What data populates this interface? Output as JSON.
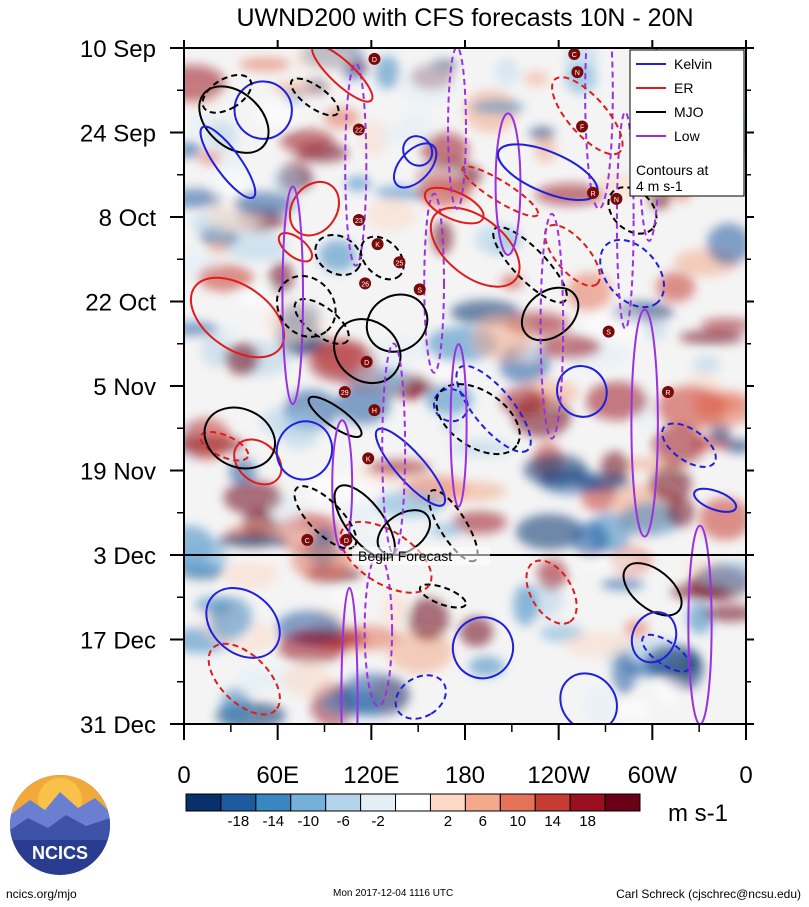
{
  "chart_data": {
    "type": "heatmap",
    "title": "UWND200 with CFS forecasts  10N - 20N",
    "xlabel": "",
    "ylabel": "",
    "x_ticks": [
      "0",
      "60E",
      "120E",
      "180",
      "120W",
      "60W",
      "0"
    ],
    "x_tick_values": [
      0,
      60,
      120,
      180,
      240,
      300,
      360
    ],
    "y_ticks": [
      "10 Sep",
      "24 Sep",
      "8 Oct",
      "22 Oct",
      "5 Nov",
      "19 Nov",
      "3 Dec",
      "17 Dec",
      "31 Dec"
    ],
    "y_tick_values": [
      0,
      14,
      28,
      42,
      56,
      70,
      84,
      98,
      112
    ],
    "xlim": [
      0,
      360
    ],
    "ylim": [
      0,
      112
    ],
    "units": "m s-1",
    "colorbar": {
      "labels": [
        "-18",
        "-14",
        "-10",
        "-6",
        "-2",
        "2",
        "6",
        "10",
        "14",
        "18"
      ],
      "colors": [
        "#08306b",
        "#1d5aa0",
        "#3a86c1",
        "#74b0d8",
        "#b3d4ea",
        "#e2eff7",
        "#ffffff",
        "#fbd9c6",
        "#f3a98a",
        "#e4735a",
        "#c63b32",
        "#9b1020",
        "#6a0015"
      ]
    },
    "legend": {
      "placement": "top-right",
      "entries": [
        {
          "name": "Kelvin",
          "color": "#1f1fdc"
        },
        {
          "name": "ER",
          "color": "#e01b1b"
        },
        {
          "name": "MJO",
          "color": "#000000"
        },
        {
          "name": "Low",
          "color": "#9b30e0"
        }
      ],
      "note_line1": "Contours at",
      "note_line2": "4 m s-1"
    },
    "forecast_line": {
      "label": "Begin Forecast",
      "y": 84
    },
    "storm_markers": [
      {
        "label": "D",
        "x": 122,
        "y": 1.8
      },
      {
        "label": "C",
        "x": 250,
        "y": 1.0
      },
      {
        "label": "N",
        "x": 252,
        "y": 4.0
      },
      {
        "label": "22",
        "x": 112,
        "y": 13.5
      },
      {
        "label": "F",
        "x": 255,
        "y": 13.0
      },
      {
        "label": "R",
        "x": 262,
        "y": 24.0
      },
      {
        "label": "N",
        "x": 277,
        "y": 25.0
      },
      {
        "label": "23",
        "x": 112,
        "y": 28.5
      },
      {
        "label": "K",
        "x": 124,
        "y": 32.5
      },
      {
        "label": "25",
        "x": 138,
        "y": 35.5
      },
      {
        "label": "26",
        "x": 116,
        "y": 39.0
      },
      {
        "label": "S",
        "x": 151,
        "y": 40.0
      },
      {
        "label": "S",
        "x": 272,
        "y": 47.0
      },
      {
        "label": "D",
        "x": 117,
        "y": 52.0
      },
      {
        "label": "29",
        "x": 103,
        "y": 57.0
      },
      {
        "label": "R",
        "x": 310,
        "y": 57.0
      },
      {
        "label": "H",
        "x": 122,
        "y": 60.0
      },
      {
        "label": "K",
        "x": 118,
        "y": 68.0
      },
      {
        "label": "C",
        "x": 79,
        "y": 81.5
      },
      {
        "label": "D",
        "x": 104,
        "y": 81.5
      }
    ]
  },
  "footer": {
    "left": "ncics.org/mjo",
    "center": "Mon 2017-12-04 1116 UTC",
    "right": "Carl Schreck (cjschrec@ncsu.edu)"
  },
  "logo": {
    "text": "NCICS"
  }
}
